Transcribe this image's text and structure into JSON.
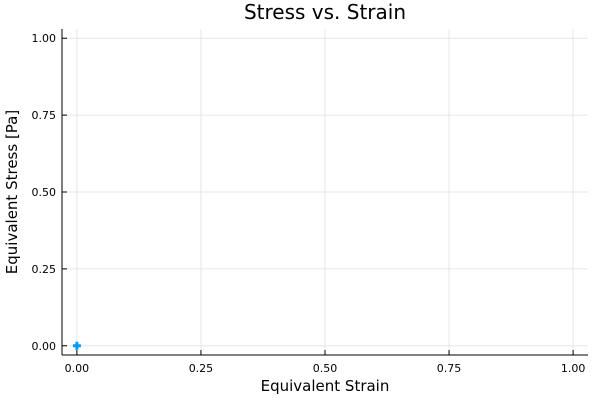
{
  "chart_data": {
    "type": "scatter",
    "title": "Stress vs. Strain",
    "xlabel": "Equivalent Strain",
    "ylabel": "Equivalent Stress [Pa]",
    "xlim": [
      -0.03,
      1.03
    ],
    "ylim": [
      -0.03,
      1.03
    ],
    "xticks": [
      0.0,
      0.25,
      0.5,
      0.75,
      1.0
    ],
    "yticks": [
      0.0,
      0.25,
      0.5,
      0.75,
      1.0
    ],
    "xtick_labels": [
      "0.00",
      "0.25",
      "0.50",
      "0.75",
      "1.00"
    ],
    "ytick_labels": [
      "0.00",
      "0.25",
      "0.50",
      "0.75",
      "1.00"
    ],
    "grid": true,
    "series": [
      {
        "color": "#009af9",
        "marker": "plus",
        "x": [
          0.0
        ],
        "y": [
          0.0
        ]
      }
    ]
  }
}
